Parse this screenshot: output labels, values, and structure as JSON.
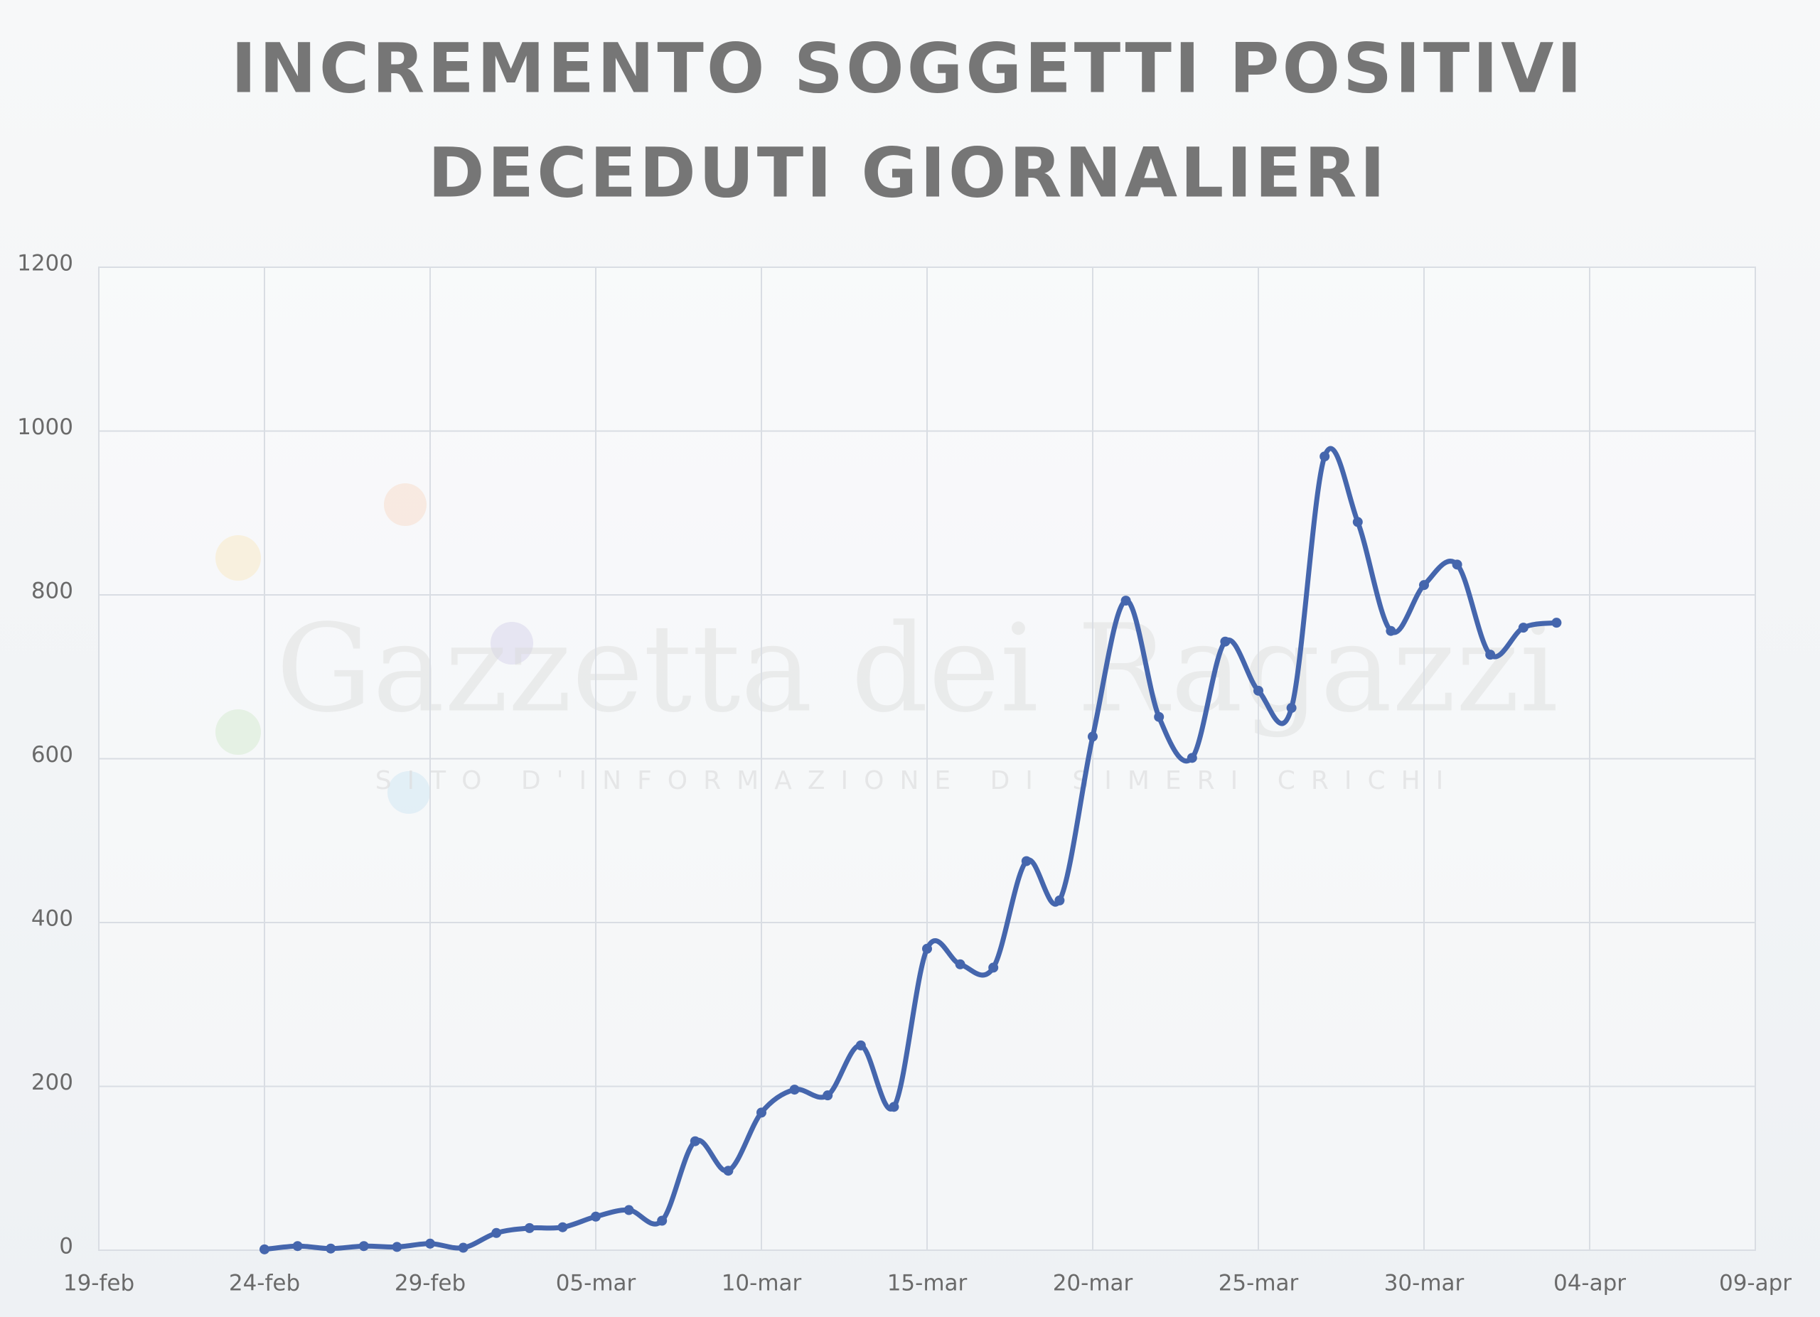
{
  "chart_data": {
    "type": "line",
    "title": "INCREMENTO SOGGETTI POSITIVI",
    "subtitle": "DECEDUTI GIORNALIERI",
    "watermark": "Gazzetta dei Ragazzi",
    "watermark_subtitle": "SITO D'INFORMAZIONE DI SIMERI CRICHI",
    "x": [
      "24-feb",
      "25-feb",
      "26-feb",
      "27-feb",
      "28-feb",
      "29-feb",
      "01-mar",
      "02-mar",
      "03-mar",
      "04-mar",
      "05-mar",
      "06-mar",
      "07-mar",
      "08-mar",
      "09-mar",
      "10-mar",
      "11-mar",
      "12-mar",
      "13-mar",
      "14-mar",
      "15-mar",
      "16-mar",
      "17-mar",
      "18-mar",
      "19-mar",
      "20-mar",
      "21-mar",
      "22-mar",
      "23-mar",
      "24-mar",
      "25-mar",
      "26-mar",
      "27-mar",
      "28-mar",
      "29-mar",
      "30-mar",
      "31-mar",
      "01-apr",
      "02-apr",
      "03-apr"
    ],
    "series": [
      {
        "color": "#4566ad",
        "values": [
          1,
          5,
          2,
          5,
          4,
          8,
          3,
          21,
          27,
          28,
          41,
          49,
          36,
          133,
          97,
          168,
          196,
          189,
          250,
          175,
          368,
          349,
          345,
          475,
          427,
          627,
          793,
          651,
          601,
          743,
          683,
          662,
          969,
          889,
          756,
          812,
          837,
          727,
          760,
          766
        ]
      }
    ],
    "xlim": [
      "19-feb",
      "09-apr"
    ],
    "xticks": [
      "19-feb",
      "24-feb",
      "29-feb",
      "05-mar",
      "10-mar",
      "15-mar",
      "20-mar",
      "25-mar",
      "30-mar",
      "04-apr",
      "09-apr"
    ],
    "ylim": [
      0,
      1200
    ],
    "yticks": [
      0,
      200,
      400,
      600,
      800,
      1000,
      1200
    ],
    "grid": true
  }
}
